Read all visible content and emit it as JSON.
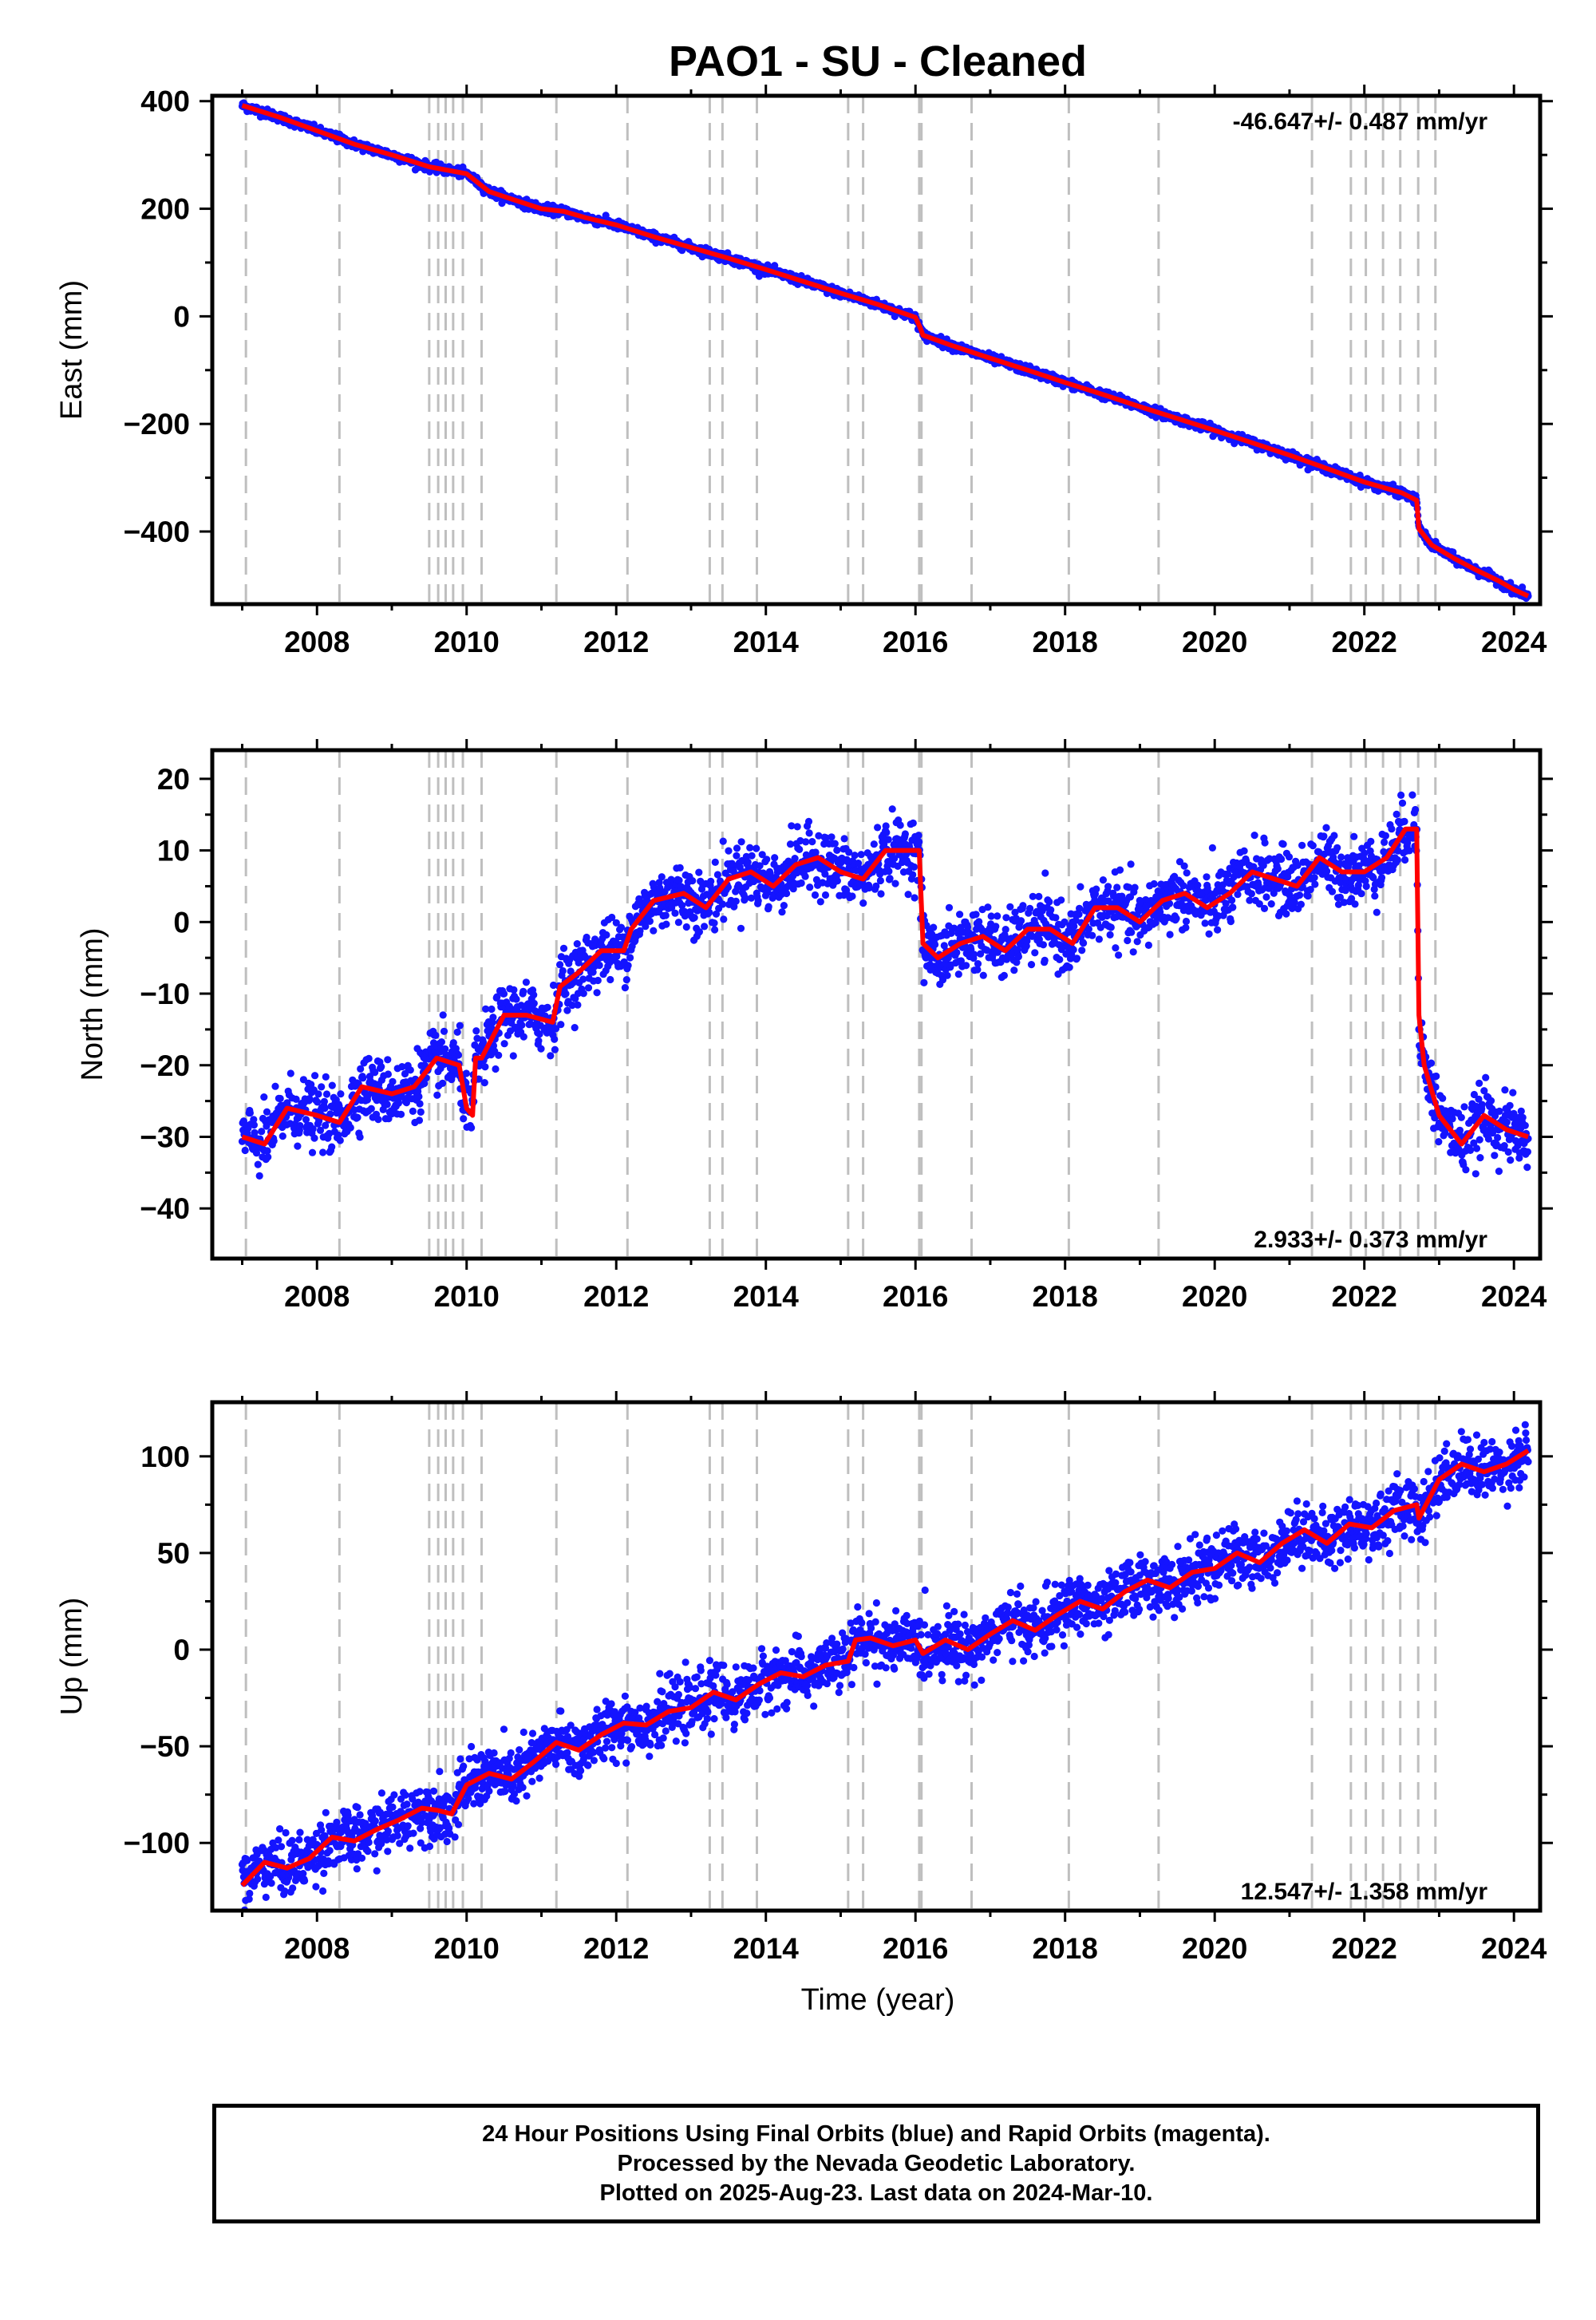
{
  "title": "PAO1  - SU - Cleaned",
  "time_axis_label": "Time (year)",
  "colors": {
    "data": "#1414ff",
    "model": "#ff0000",
    "steps": "#bfbfbf"
  },
  "footer": {
    "line1": "24 Hour Positions Using Final Orbits (blue) and Rapid Orbits (magenta).",
    "line2": "Processed by the Nevada Geodetic Laboratory.",
    "line3": "Plotted on 2025-Aug-23. Last data on 2024-Mar-10."
  },
  "chart_data": [
    {
      "type": "scatter",
      "component": "east",
      "ylabel": "East (mm)",
      "xlim": [
        2006.6,
        2024.35
      ],
      "ylim": [
        -535,
        410
      ],
      "x_ticks": [
        2008,
        2010,
        2012,
        2014,
        2016,
        2018,
        2020,
        2022,
        2024
      ],
      "y_ticks": [
        -400,
        -200,
        0,
        200,
        400
      ],
      "rate_label": "-46.647+/- 0.487 mm/yr",
      "rate_position": "top-right",
      "step_epochs": [
        2007.05,
        2008.3,
        2009.5,
        2009.62,
        2009.72,
        2009.82,
        2009.95,
        2010.2,
        2011.2,
        2012.15,
        2013.25,
        2013.42,
        2013.88,
        2015.1,
        2015.3,
        2016.05,
        2016.08,
        2016.75,
        2018.05,
        2019.25,
        2021.3,
        2021.82,
        2022.02,
        2022.25,
        2022.48,
        2022.72,
        2022.95
      ],
      "series": [
        {
          "role": "data",
          "x": [
            2007.0,
            2007.5,
            2008.0,
            2008.5,
            2009.0,
            2009.5,
            2010.0,
            2010.3,
            2010.6,
            2011.0,
            2011.3,
            2011.6,
            2012.0,
            2012.5,
            2013.0,
            2013.5,
            2014.0,
            2014.5,
            2015.0,
            2015.5,
            2016.0,
            2016.06,
            2016.1,
            2016.5,
            2017.0,
            2017.5,
            2018.0,
            2018.5,
            2019.0,
            2019.5,
            2020.0,
            2020.5,
            2021.0,
            2021.5,
            2022.0,
            2022.5,
            2022.7,
            2022.73,
            2022.9,
            2023.2,
            2023.5,
            2023.8,
            2024.0,
            2024.19
          ],
          "y": [
            392,
            370,
            345,
            320,
            300,
            278,
            265,
            232,
            218,
            200,
            195,
            183,
            170,
            148,
            128,
            108,
            87,
            65,
            43,
            22,
            -2,
            -20,
            -35,
            -55,
            -78,
            -100,
            -123,
            -145,
            -168,
            -190,
            -212,
            -235,
            -258,
            -283,
            -308,
            -328,
            -342,
            -395,
            -425,
            -450,
            -472,
            -492,
            -508,
            -520
          ],
          "spread": 4
        },
        {
          "role": "model",
          "x": [
            2007.0,
            2007.5,
            2008.0,
            2008.5,
            2009.0,
            2009.5,
            2010.0,
            2010.3,
            2010.6,
            2011.0,
            2011.3,
            2011.6,
            2012.0,
            2012.5,
            2013.0,
            2013.5,
            2014.0,
            2014.5,
            2015.0,
            2015.5,
            2016.0,
            2016.06,
            2016.1,
            2016.5,
            2017.0,
            2017.5,
            2018.0,
            2018.5,
            2019.0,
            2019.5,
            2020.0,
            2020.5,
            2021.0,
            2021.5,
            2022.0,
            2022.5,
            2022.7,
            2022.73,
            2022.9,
            2023.2,
            2023.5,
            2023.8,
            2024.0,
            2024.19
          ],
          "y": [
            392,
            370,
            345,
            320,
            300,
            278,
            265,
            232,
            218,
            200,
            195,
            183,
            170,
            148,
            128,
            108,
            87,
            65,
            43,
            22,
            -2,
            -20,
            -35,
            -55,
            -78,
            -100,
            -123,
            -145,
            -168,
            -190,
            -212,
            -235,
            -258,
            -283,
            -308,
            -328,
            -342,
            -395,
            -425,
            -450,
            -472,
            -492,
            -508,
            -520
          ]
        }
      ]
    },
    {
      "type": "scatter",
      "component": "north",
      "ylabel": "North (mm)",
      "xlim": [
        2006.6,
        2024.35
      ],
      "ylim": [
        -47,
        24
      ],
      "x_ticks": [
        2008,
        2010,
        2012,
        2014,
        2016,
        2018,
        2020,
        2022,
        2024
      ],
      "y_ticks": [
        -40,
        -30,
        -20,
        -10,
        0,
        10,
        20
      ],
      "rate_label": "2.933+/- 0.373 mm/yr",
      "rate_position": "bottom-right",
      "step_epochs": [
        2007.05,
        2008.3,
        2009.5,
        2009.62,
        2009.72,
        2009.82,
        2009.95,
        2010.2,
        2011.2,
        2012.15,
        2013.25,
        2013.42,
        2013.88,
        2015.1,
        2015.3,
        2016.05,
        2016.08,
        2016.75,
        2018.05,
        2019.25,
        2021.3,
        2021.82,
        2022.02,
        2022.25,
        2022.48,
        2022.72,
        2022.95
      ],
      "series": [
        {
          "role": "data",
          "x": [
            2007.0,
            2007.3,
            2007.6,
            2008.0,
            2008.3,
            2008.6,
            2009.0,
            2009.3,
            2009.6,
            2009.9,
            2010.0,
            2010.08,
            2010.12,
            2010.2,
            2010.5,
            2010.8,
            2011.15,
            2011.25,
            2011.5,
            2011.8,
            2012.1,
            2012.2,
            2012.5,
            2012.9,
            2013.2,
            2013.5,
            2013.8,
            2014.1,
            2014.4,
            2014.7,
            2015.0,
            2015.3,
            2015.6,
            2015.9,
            2016.05,
            2016.1,
            2016.3,
            2016.6,
            2016.9,
            2017.2,
            2017.5,
            2017.8,
            2018.1,
            2018.4,
            2018.7,
            2019.0,
            2019.3,
            2019.6,
            2019.9,
            2020.2,
            2020.5,
            2020.8,
            2021.1,
            2021.4,
            2021.7,
            2022.0,
            2022.3,
            2022.55,
            2022.7,
            2022.73,
            2022.8,
            2023.0,
            2023.3,
            2023.6,
            2023.9,
            2024.19
          ],
          "y": [
            -30,
            -31,
            -26,
            -27,
            -28,
            -23,
            -24,
            -23,
            -19,
            -20,
            -26,
            -27,
            -19,
            -19,
            -13,
            -13,
            -14,
            -9,
            -7,
            -4,
            -4,
            -1,
            3,
            4,
            2,
            6,
            7,
            5,
            8,
            9,
            7,
            6,
            10,
            10,
            10,
            -3,
            -5,
            -3,
            -2,
            -4,
            -1,
            -1,
            -3,
            2,
            2,
            0,
            3,
            4,
            2,
            4,
            7,
            6,
            5,
            9,
            7,
            7,
            9,
            13,
            13,
            -13,
            -20,
            -27,
            -31,
            -27,
            -29,
            -30
          ],
          "spread": 2.2
        },
        {
          "role": "model",
          "x": [
            2007.0,
            2007.3,
            2007.6,
            2008.0,
            2008.3,
            2008.6,
            2009.0,
            2009.3,
            2009.6,
            2009.9,
            2010.0,
            2010.08,
            2010.12,
            2010.2,
            2010.5,
            2010.8,
            2011.15,
            2011.25,
            2011.5,
            2011.8,
            2012.1,
            2012.2,
            2012.5,
            2012.9,
            2013.2,
            2013.5,
            2013.8,
            2014.1,
            2014.4,
            2014.7,
            2015.0,
            2015.3,
            2015.6,
            2015.9,
            2016.05,
            2016.1,
            2016.3,
            2016.6,
            2016.9,
            2017.2,
            2017.5,
            2017.8,
            2018.1,
            2018.4,
            2018.7,
            2019.0,
            2019.3,
            2019.6,
            2019.9,
            2020.2,
            2020.5,
            2020.8,
            2021.1,
            2021.4,
            2021.7,
            2022.0,
            2022.3,
            2022.55,
            2022.7,
            2022.73,
            2022.8,
            2023.0,
            2023.3,
            2023.6,
            2023.9,
            2024.19
          ],
          "y": [
            -30,
            -31,
            -26,
            -27,
            -28,
            -23,
            -24,
            -23,
            -19,
            -20,
            -26,
            -27,
            -19,
            -19,
            -13,
            -13,
            -14,
            -9,
            -7,
            -4,
            -4,
            -1,
            3,
            4,
            2,
            6,
            7,
            5,
            8,
            9,
            7,
            6,
            10,
            10,
            10,
            -3,
            -5,
            -3,
            -2,
            -4,
            -1,
            -1,
            -3,
            2,
            2,
            0,
            3,
            4,
            2,
            4,
            7,
            6,
            5,
            9,
            7,
            7,
            9,
            13,
            13,
            -13,
            -20,
            -27,
            -31,
            -27,
            -29,
            -30
          ]
        }
      ]
    },
    {
      "type": "scatter",
      "component": "up",
      "ylabel": "Up (mm)",
      "xlim": [
        2006.6,
        2024.35
      ],
      "ylim": [
        -135,
        128
      ],
      "x_ticks": [
        2008,
        2010,
        2012,
        2014,
        2016,
        2018,
        2020,
        2022,
        2024
      ],
      "y_ticks": [
        -100,
        -50,
        0,
        50,
        100
      ],
      "rate_label": "12.547+/- 1.358 mm/yr",
      "rate_position": "bottom-right",
      "step_epochs": [
        2007.05,
        2008.3,
        2009.5,
        2009.62,
        2009.72,
        2009.82,
        2009.95,
        2010.2,
        2011.2,
        2012.15,
        2013.25,
        2013.42,
        2013.88,
        2015.1,
        2015.3,
        2016.05,
        2016.08,
        2016.75,
        2018.05,
        2019.25,
        2021.3,
        2021.82,
        2022.02,
        2022.25,
        2022.48,
        2022.72,
        2022.95
      ],
      "series": [
        {
          "role": "data",
          "x": [
            2007.0,
            2007.3,
            2007.6,
            2007.9,
            2008.2,
            2008.5,
            2008.8,
            2009.1,
            2009.4,
            2009.6,
            2009.8,
            2010.0,
            2010.3,
            2010.6,
            2010.9,
            2011.2,
            2011.5,
            2011.8,
            2012.1,
            2012.4,
            2012.7,
            2013.0,
            2013.3,
            2013.6,
            2013.9,
            2014.2,
            2014.5,
            2014.8,
            2015.1,
            2015.2,
            2015.4,
            2015.7,
            2016.0,
            2016.1,
            2016.4,
            2016.7,
            2017.0,
            2017.3,
            2017.6,
            2017.9,
            2018.2,
            2018.5,
            2018.8,
            2019.1,
            2019.4,
            2019.7,
            2020.0,
            2020.3,
            2020.6,
            2020.9,
            2021.2,
            2021.5,
            2021.8,
            2022.1,
            2022.4,
            2022.7,
            2022.73,
            2023.0,
            2023.3,
            2023.6,
            2023.9,
            2024.19
          ],
          "y": [
            -122,
            -110,
            -113,
            -108,
            -97,
            -99,
            -93,
            -88,
            -82,
            -83,
            -85,
            -70,
            -64,
            -67,
            -58,
            -48,
            -52,
            -44,
            -38,
            -39,
            -32,
            -30,
            -22,
            -26,
            -18,
            -12,
            -14,
            -8,
            -6,
            5,
            6,
            2,
            5,
            -2,
            5,
            0,
            8,
            15,
            10,
            18,
            25,
            21,
            30,
            36,
            32,
            40,
            42,
            50,
            45,
            55,
            62,
            55,
            65,
            63,
            72,
            75,
            68,
            88,
            96,
            92,
            96,
            103
          ],
          "spread": 7.5
        },
        {
          "role": "model",
          "x": [
            2007.0,
            2007.3,
            2007.6,
            2007.9,
            2008.2,
            2008.5,
            2008.8,
            2009.1,
            2009.4,
            2009.6,
            2009.8,
            2010.0,
            2010.3,
            2010.6,
            2010.9,
            2011.2,
            2011.5,
            2011.8,
            2012.1,
            2012.4,
            2012.7,
            2013.0,
            2013.3,
            2013.6,
            2013.9,
            2014.2,
            2014.5,
            2014.8,
            2015.1,
            2015.2,
            2015.4,
            2015.7,
            2016.0,
            2016.1,
            2016.4,
            2016.7,
            2017.0,
            2017.3,
            2017.6,
            2017.9,
            2018.2,
            2018.5,
            2018.8,
            2019.1,
            2019.4,
            2019.7,
            2020.0,
            2020.3,
            2020.6,
            2020.9,
            2021.2,
            2021.5,
            2021.8,
            2022.1,
            2022.4,
            2022.7,
            2022.73,
            2023.0,
            2023.3,
            2023.6,
            2023.9,
            2024.19
          ],
          "y": [
            -122,
            -110,
            -113,
            -108,
            -97,
            -99,
            -93,
            -88,
            -82,
            -83,
            -85,
            -70,
            -64,
            -67,
            -58,
            -48,
            -52,
            -44,
            -38,
            -39,
            -32,
            -30,
            -22,
            -26,
            -18,
            -12,
            -14,
            -8,
            -6,
            5,
            6,
            2,
            5,
            -2,
            5,
            0,
            8,
            15,
            10,
            18,
            25,
            21,
            30,
            36,
            32,
            40,
            42,
            50,
            45,
            55,
            62,
            55,
            65,
            63,
            72,
            75,
            68,
            88,
            96,
            92,
            96,
            103
          ]
        }
      ]
    }
  ]
}
